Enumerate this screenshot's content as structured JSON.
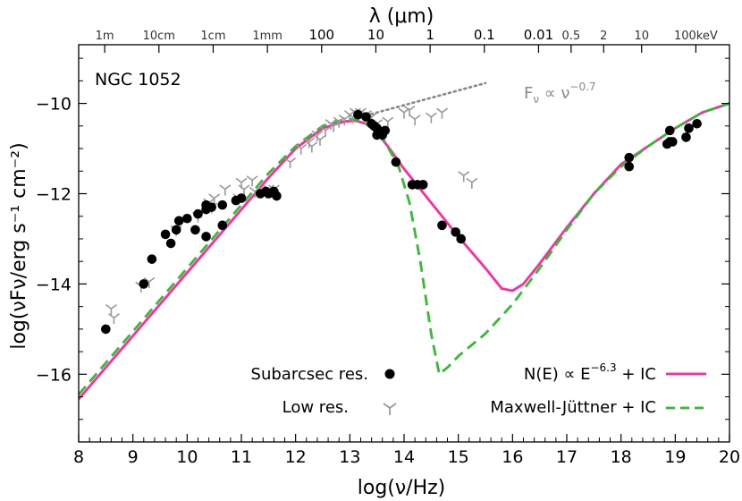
{
  "chart_data": {
    "type": "scatter",
    "title": "NGC 1052",
    "xlabel": "log(ν/Hz)",
    "ylabel": "log(νFν/erg s⁻¹ cm⁻²)",
    "top_axis_label": "λ (μm)",
    "xlim": [
      8,
      20
    ],
    "ylim": [
      -17.5,
      -8.7
    ],
    "x_ticks": [
      8,
      9,
      10,
      11,
      12,
      13,
      14,
      15,
      16,
      17,
      18,
      19,
      20
    ],
    "x_tick_labels": [
      "8",
      "9",
      "10",
      "11",
      "12",
      "13",
      "14",
      "15",
      "16",
      "17",
      "18",
      "19",
      "20"
    ],
    "y_ticks": [
      -16,
      -14,
      -12,
      -10
    ],
    "y_tick_labels": [
      "−16",
      "−14",
      "−12",
      "−10"
    ],
    "top_ticks": [
      {
        "x": 8.48,
        "label": "1m",
        "bold": false
      },
      {
        "x": 9.48,
        "label": "10cm",
        "bold": false
      },
      {
        "x": 10.48,
        "label": "1cm",
        "bold": false
      },
      {
        "x": 11.48,
        "label": "1mm",
        "bold": false
      },
      {
        "x": 12.48,
        "label": "100",
        "bold": true
      },
      {
        "x": 13.48,
        "label": "10",
        "bold": true
      },
      {
        "x": 14.48,
        "label": "1",
        "bold": true
      },
      {
        "x": 15.48,
        "label": "0.1",
        "bold": true
      },
      {
        "x": 16.48,
        "label": "0.01",
        "bold": true
      },
      {
        "x": 17.08,
        "label": "0.5",
        "bold": false
      },
      {
        "x": 17.68,
        "label": "2",
        "bold": false
      },
      {
        "x": 18.38,
        "label": "10",
        "bold": false
      },
      {
        "x": 19.38,
        "label": "100keV",
        "bold": false
      }
    ],
    "annotation_powerlaw": "Fν ∝ ν−0.7",
    "grid": false,
    "legend_placement": "bottom",
    "series": [
      {
        "name": "Subarcsec res.",
        "kind": "points",
        "marker": "filled-circle",
        "color": "#000000",
        "points": [
          [
            8.5,
            -15.0
          ],
          [
            9.2,
            -14.0
          ],
          [
            9.35,
            -13.45
          ],
          [
            9.6,
            -12.9
          ],
          [
            9.7,
            -13.1
          ],
          [
            9.8,
            -12.8
          ],
          [
            9.85,
            -12.6
          ],
          [
            10.0,
            -12.55
          ],
          [
            10.15,
            -12.8
          ],
          [
            10.2,
            -12.45
          ],
          [
            10.35,
            -12.35
          ],
          [
            10.35,
            -12.25
          ],
          [
            10.35,
            -12.95
          ],
          [
            10.45,
            -12.3
          ],
          [
            10.65,
            -12.25
          ],
          [
            10.65,
            -12.7
          ],
          [
            10.9,
            -12.15
          ],
          [
            11.0,
            -12.1
          ],
          [
            11.35,
            -12.0
          ],
          [
            11.45,
            -11.95
          ],
          [
            11.5,
            -12.0
          ],
          [
            11.6,
            -11.95
          ],
          [
            11.65,
            -12.05
          ],
          [
            13.15,
            -10.25
          ],
          [
            13.3,
            -10.3
          ],
          [
            13.4,
            -10.45
          ],
          [
            13.45,
            -10.5
          ],
          [
            13.5,
            -10.55
          ],
          [
            13.5,
            -10.7
          ],
          [
            13.55,
            -10.65
          ],
          [
            13.6,
            -10.7
          ],
          [
            13.65,
            -10.6
          ],
          [
            13.85,
            -11.3
          ],
          [
            14.15,
            -11.8
          ],
          [
            14.25,
            -11.8
          ],
          [
            14.35,
            -11.8
          ],
          [
            14.7,
            -12.7
          ],
          [
            14.95,
            -12.85
          ],
          [
            15.05,
            -13.0
          ],
          [
            18.15,
            -11.2
          ],
          [
            18.15,
            -11.4
          ],
          [
            18.85,
            -10.9
          ],
          [
            18.9,
            -10.6
          ],
          [
            18.9,
            -10.85
          ],
          [
            18.95,
            -10.85
          ],
          [
            19.2,
            -10.75
          ],
          [
            19.25,
            -10.55
          ],
          [
            19.4,
            -10.45
          ]
        ]
      },
      {
        "name": "Low res.",
        "kind": "points",
        "marker": "tri-down",
        "color": "#999999",
        "points": [
          [
            8.6,
            -14.55
          ],
          [
            8.65,
            -14.75
          ],
          [
            9.15,
            -14.05
          ],
          [
            9.3,
            -13.95
          ],
          [
            9.8,
            -12.8
          ],
          [
            10.2,
            -12.5
          ],
          [
            10.4,
            -12.2
          ],
          [
            10.45,
            -12.3
          ],
          [
            10.5,
            -12.1
          ],
          [
            10.7,
            -11.9
          ],
          [
            10.95,
            -12.1
          ],
          [
            11.0,
            -11.75
          ],
          [
            11.05,
            -11.9
          ],
          [
            11.2,
            -11.7
          ],
          [
            11.25,
            -11.95
          ],
          [
            11.5,
            -11.9
          ],
          [
            11.55,
            -11.95
          ],
          [
            11.6,
            -11.9
          ],
          [
            11.9,
            -11.3
          ],
          [
            12.1,
            -11.0
          ],
          [
            12.25,
            -10.85
          ],
          [
            12.3,
            -10.95
          ],
          [
            12.4,
            -10.7
          ],
          [
            12.45,
            -10.8
          ],
          [
            12.55,
            -10.6
          ],
          [
            12.65,
            -10.45
          ],
          [
            12.7,
            -10.5
          ],
          [
            12.8,
            -10.4
          ],
          [
            12.9,
            -10.35
          ],
          [
            13.0,
            -10.25
          ],
          [
            13.05,
            -10.3
          ],
          [
            13.1,
            -10.2
          ],
          [
            13.2,
            -10.2
          ],
          [
            13.3,
            -10.25
          ],
          [
            13.4,
            -10.3
          ],
          [
            13.5,
            -10.45
          ],
          [
            13.7,
            -10.4
          ],
          [
            14.0,
            -10.2
          ],
          [
            14.1,
            -10.15
          ],
          [
            14.2,
            -10.35
          ],
          [
            14.5,
            -10.3
          ],
          [
            14.7,
            -10.2
          ],
          [
            15.1,
            -11.6
          ],
          [
            15.25,
            -11.75
          ]
        ]
      },
      {
        "name": "N(E) ∝ E−6.3 + IC",
        "kind": "curve",
        "style": "solid",
        "color": "#ff2aa2",
        "points": [
          [
            8.0,
            -16.55
          ],
          [
            9.0,
            -15.15
          ],
          [
            10.0,
            -13.75
          ],
          [
            11.0,
            -12.35
          ],
          [
            11.5,
            -11.65
          ],
          [
            12.0,
            -11.0
          ],
          [
            12.5,
            -10.55
          ],
          [
            12.9,
            -10.4
          ],
          [
            13.1,
            -10.38
          ],
          [
            13.3,
            -10.45
          ],
          [
            13.5,
            -10.65
          ],
          [
            13.7,
            -10.95
          ],
          [
            14.0,
            -11.45
          ],
          [
            14.5,
            -12.2
          ],
          [
            15.0,
            -12.95
          ],
          [
            15.5,
            -13.65
          ],
          [
            15.8,
            -14.1
          ],
          [
            16.0,
            -14.15
          ],
          [
            16.2,
            -14.0
          ],
          [
            16.5,
            -13.55
          ],
          [
            17.0,
            -12.75
          ],
          [
            17.5,
            -12.0
          ],
          [
            18.0,
            -11.35
          ],
          [
            18.5,
            -10.95
          ],
          [
            19.0,
            -10.55
          ],
          [
            19.5,
            -10.2
          ],
          [
            20.0,
            -10.0
          ]
        ]
      },
      {
        "name": "Maxwell-Jüttner + IC",
        "kind": "curve",
        "style": "dashed",
        "color": "#33bb33",
        "points": [
          [
            8.0,
            -16.45
          ],
          [
            9.0,
            -15.05
          ],
          [
            10.0,
            -13.65
          ],
          [
            11.0,
            -12.25
          ],
          [
            11.5,
            -11.55
          ],
          [
            12.0,
            -10.95
          ],
          [
            12.5,
            -10.5
          ],
          [
            12.9,
            -10.35
          ],
          [
            13.1,
            -10.35
          ],
          [
            13.3,
            -10.45
          ],
          [
            13.6,
            -10.75
          ],
          [
            13.9,
            -11.4
          ],
          [
            14.1,
            -12.2
          ],
          [
            14.3,
            -13.5
          ],
          [
            14.5,
            -15.1
          ],
          [
            14.65,
            -16.0
          ],
          [
            14.8,
            -15.85
          ],
          [
            15.0,
            -15.6
          ],
          [
            15.5,
            -15.1
          ],
          [
            16.0,
            -14.45
          ],
          [
            16.5,
            -13.65
          ],
          [
            17.0,
            -12.8
          ],
          [
            17.5,
            -12.0
          ],
          [
            18.0,
            -11.4
          ],
          [
            18.5,
            -10.95
          ],
          [
            19.0,
            -10.55
          ],
          [
            19.5,
            -10.2
          ],
          [
            20.0,
            -10.0
          ]
        ]
      },
      {
        "name": "",
        "kind": "curve",
        "style": "dotted",
        "color": "#888888",
        "points": [
          [
            13.2,
            -10.3
          ],
          [
            15.5,
            -9.55
          ]
        ]
      }
    ],
    "legend": [
      {
        "series": 0,
        "label": "Subarcsec res."
      },
      {
        "series": 1,
        "label": "Low res."
      },
      {
        "series": 2,
        "label": "N(E) ∝ E−6.3 + IC"
      },
      {
        "series": 3,
        "label": "Maxwell-Jüttner + IC"
      }
    ]
  }
}
